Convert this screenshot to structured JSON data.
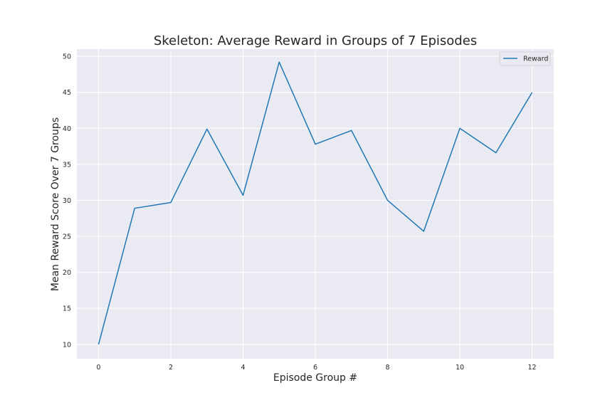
{
  "chart_data": {
    "type": "line",
    "title": "Skeleton: Average Reward in Groups of 7 Episodes",
    "xlabel": "Episode Group #",
    "ylabel": "Mean Reward Score Over 7 Groups",
    "x": [
      0,
      1,
      2,
      3,
      4,
      5,
      6,
      7,
      8,
      9,
      10,
      11,
      12
    ],
    "series": [
      {
        "name": "Reward",
        "color": "#1f77b4",
        "values": [
          10.0,
          28.9,
          29.7,
          39.9,
          30.7,
          49.2,
          37.8,
          39.7,
          30.0,
          25.7,
          40.0,
          36.6,
          45.0
        ]
      }
    ],
    "xticks": [
      "0",
      "2",
      "4",
      "6",
      "8",
      "10",
      "12"
    ],
    "yticks": [
      "10",
      "15",
      "20",
      "25",
      "30",
      "35",
      "40",
      "45",
      "50"
    ],
    "xlim": [
      -0.6,
      12.6
    ],
    "ylim": [
      8.0,
      51.0
    ],
    "grid": true,
    "legend_position": "top-right",
    "background": "#eaeaf2"
  }
}
